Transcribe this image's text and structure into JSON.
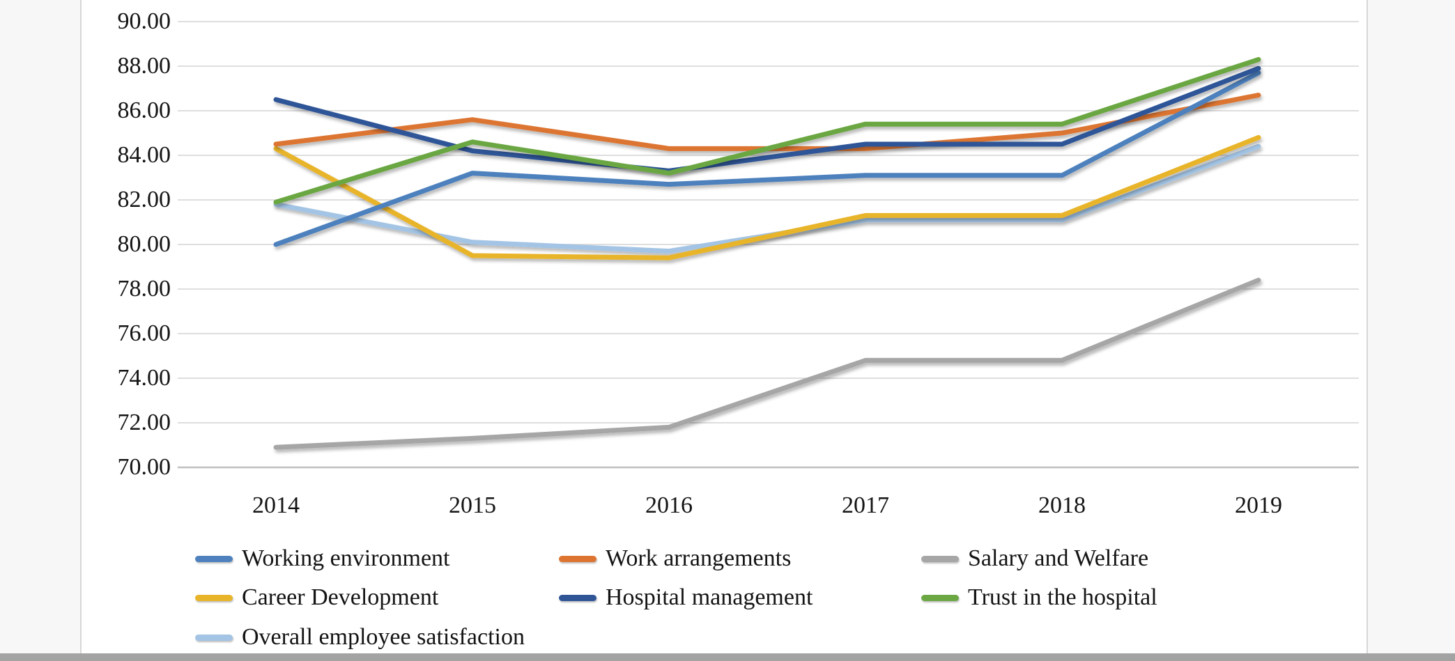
{
  "chart_data": {
    "type": "line",
    "title": "",
    "categories": [
      "2014",
      "2015",
      "2016",
      "2017",
      "2018",
      "2019"
    ],
    "xlabel": "",
    "ylabel": "",
    "ylim": [
      70,
      90
    ],
    "y_tick_step": 2,
    "y_tick_labels": [
      "90.00",
      "88.00",
      "86.00",
      "84.00",
      "82.00",
      "80.00",
      "78.00",
      "76.00",
      "74.00",
      "72.00",
      "70.00"
    ],
    "grid": true,
    "gridline_color": "#d9d9d9",
    "axis_line_color": "#bfbfbf",
    "legend_position": "bottom",
    "series": [
      {
        "name": "Working environment",
        "color": "#4E81BD",
        "values": [
          80.0,
          83.2,
          82.7,
          83.1,
          83.1,
          87.7
        ]
      },
      {
        "name": "Work arrangements",
        "color": "#DD7531",
        "values": [
          84.5,
          85.6,
          84.3,
          84.3,
          85.0,
          86.7
        ]
      },
      {
        "name": "Salary and Welfare",
        "color": "#A6A6A6",
        "values": [
          70.9,
          71.3,
          71.8,
          74.8,
          74.8,
          78.4
        ]
      },
      {
        "name": "Career Development",
        "color": "#E8B42A",
        "values": [
          84.3,
          79.5,
          79.4,
          81.3,
          81.3,
          84.8
        ]
      },
      {
        "name": "Hospital management",
        "color": "#2F5597",
        "values": [
          86.5,
          84.2,
          83.3,
          84.5,
          84.5,
          87.9
        ]
      },
      {
        "name": "Trust in the hospital",
        "color": "#6BA743",
        "values": [
          81.9,
          84.6,
          83.2,
          85.4,
          85.4,
          88.3
        ]
      },
      {
        "name": "Overall employee satisfaction",
        "color": "#A3C4E4",
        "values": [
          81.8,
          80.1,
          79.7,
          81.1,
          81.1,
          84.4
        ]
      }
    ]
  }
}
